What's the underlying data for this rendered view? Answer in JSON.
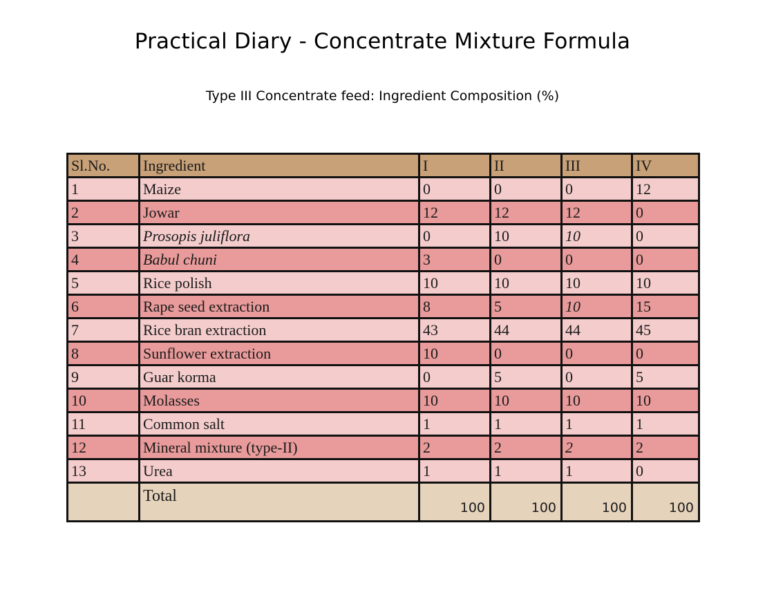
{
  "title": "Practical Diary - Concentrate Mixture Formula",
  "subtitle": "Type III Concentrate feed: Ingredient Composition (%)",
  "table": {
    "headers": [
      "Sl.No.",
      "Ingredient",
      "I",
      "II",
      "III",
      "IV"
    ],
    "rows": [
      {
        "no": "1",
        "ingredient": "Maize",
        "i": "0",
        "ii": "0",
        "iii": "0",
        "iv": "12"
      },
      {
        "no": "2",
        "ingredient": "Jowar",
        "i": "12",
        "ii": "12",
        "iii": "12",
        "iv": "0"
      },
      {
        "no": "3",
        "ingredient": "Prosopis juliflora",
        "i": "0",
        "ii": "10",
        "iii": "10",
        "iv": "0"
      },
      {
        "no": "4",
        "ingredient": "Babul chuni",
        "i": "3",
        "ii": "0",
        "iii": "0",
        "iv": "0"
      },
      {
        "no": "5",
        "ingredient": "Rice polish",
        "i": "10",
        "ii": "10",
        "iii": "10",
        "iv": "10"
      },
      {
        "no": "6",
        "ingredient": "Rape seed extraction",
        "i": "8",
        "ii": "5",
        "iii": "10",
        "iv": "15"
      },
      {
        "no": "7",
        "ingredient": "Rice bran extraction",
        "i": "43",
        "ii": "44",
        "iii": "44",
        "iv": "45"
      },
      {
        "no": "8",
        "ingredient": "Sunflower extraction",
        "i": "10",
        "ii": "0",
        "iii": "0",
        "iv": "0"
      },
      {
        "no": "9",
        "ingredient": "Guar korma",
        "i": "0",
        "ii": "5",
        "iii": "0",
        "iv": "5"
      },
      {
        "no": "10",
        "ingredient": "Molasses",
        "i": "10",
        "ii": "10",
        "iii": "10",
        "iv": "10"
      },
      {
        "no": "11",
        "ingredient": "Common salt",
        "i": "1",
        "ii": "1",
        "iii": "1",
        "iv": "1"
      },
      {
        "no": "12",
        "ingredient": "Mineral mixture (type-II)",
        "i": "2",
        "ii": "2",
        "iii": "2",
        "iv": "2"
      },
      {
        "no": "13",
        "ingredient": "Urea",
        "i": "1",
        "ii": "1",
        "iii": "1",
        "iv": "0"
      }
    ],
    "total": {
      "label": "Total",
      "i": "100",
      "ii": "100",
      "iii": "100",
      "iv": "100"
    }
  },
  "colors": {
    "header_bg": "#c8a178",
    "row_light": "#f4cccc",
    "row_dark": "#e99b9b",
    "total_bg": "#e6d3bc"
  }
}
